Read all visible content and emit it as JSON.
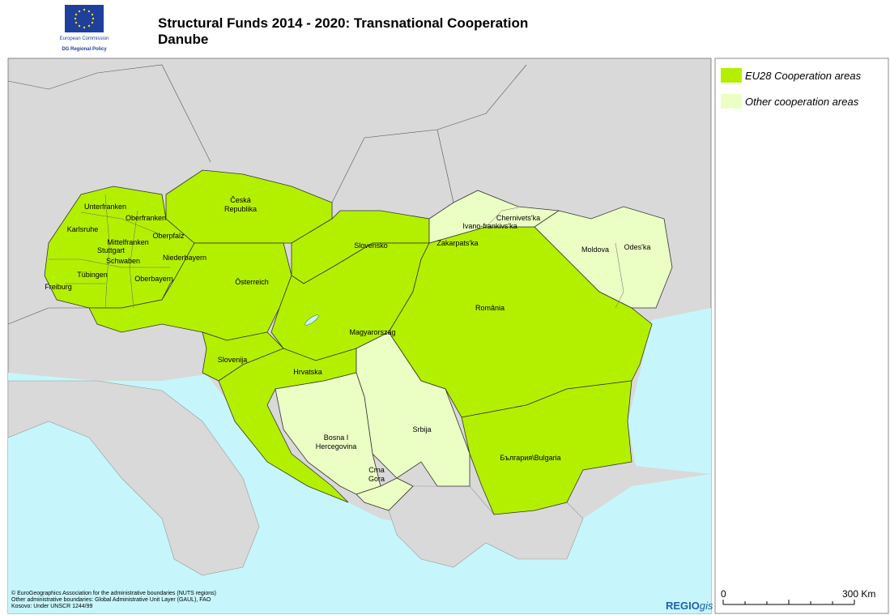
{
  "header": {
    "logo": {
      "organization": "European Commission",
      "department": "DG Regional Policy"
    },
    "title": [
      "Structural Funds 2014 - 2020: Transnational Cooperation",
      "Danube"
    ]
  },
  "legend": [
    {
      "label": "EU28 Cooperation areas",
      "color": "#b3f000"
    },
    {
      "label": "Other cooperation areas",
      "color": "#ebffc4"
    }
  ],
  "map": {
    "regions": [
      "Unterfranken",
      "Oberfranken",
      "Karlsruhe",
      "Mittelfranken",
      "Oberpfalz",
      "Stuttgart",
      "Schwaben",
      "Niederbayern",
      "Tübingen",
      "Oberbayern",
      "Freiburg",
      [
        "Česká",
        "Republika"
      ],
      "Österreich",
      "Slovensko",
      "Zakarpats'ka",
      "Ivano-frankivs'ka",
      "Chernivets'ka",
      "Moldova",
      "Odes'ka",
      "Magyarország",
      "România",
      "Slovenija",
      "Hrvatska",
      [
        "Bosna I",
        "Hercegovina"
      ],
      "Srbija",
      [
        "Crna",
        "Gora"
      ],
      "България\\Bulgaria"
    ]
  },
  "credits": [
    "© EuroGeographics Association for the administrative boundaries (NUTS regions)",
    "Other administrative boundaries: Global Administrative Unit Layer (GAUL), FAO",
    "Kosovo: Under UNSCR 1244/99"
  ],
  "brand": {
    "prefix": "REGIO",
    "suffix": "gis"
  },
  "scale": {
    "start": "0",
    "end": "300 Km"
  }
}
